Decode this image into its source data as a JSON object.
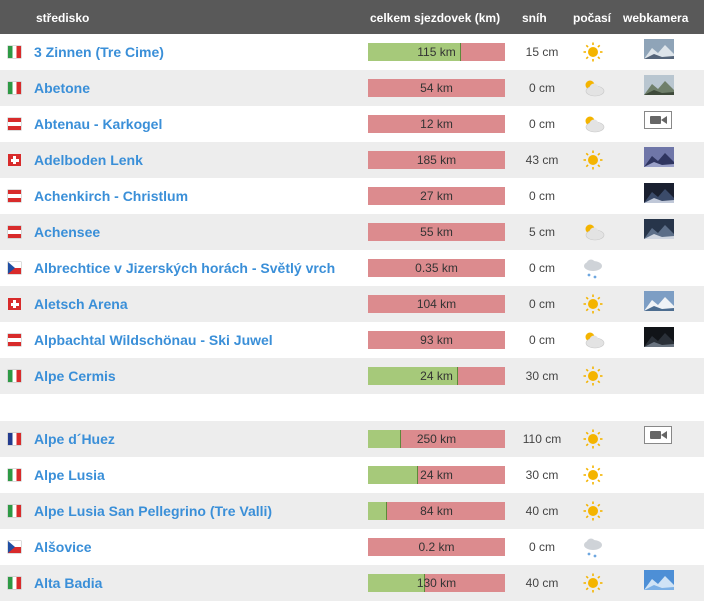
{
  "header": {
    "resort": "středisko",
    "runs": "celkem sjezdovek (km)",
    "snow": "sníh",
    "weather": "počasí",
    "webcam": "webkamera"
  },
  "resorts": [
    {
      "flag": "it",
      "name": "3 Zinnen (Tre Cime)",
      "runs": "115 km",
      "open_fraction": 0.67,
      "snow": "15 cm",
      "weather": "sun",
      "webcam": "thumb-mountain"
    },
    {
      "flag": "it",
      "name": "Abetone",
      "runs": "54 km",
      "open_fraction": 0,
      "snow": "0 cm",
      "weather": "sun-cloud",
      "webcam": "thumb-valley"
    },
    {
      "flag": "at",
      "name": "Abtenau - Karkogel",
      "runs": "12 km",
      "open_fraction": 0,
      "snow": "0 cm",
      "weather": "sun-cloud",
      "webcam": "video-icon"
    },
    {
      "flag": "ch",
      "name": "Adelboden Lenk",
      "runs": "185 km",
      "open_fraction": 0,
      "snow": "43 cm",
      "weather": "sun",
      "webcam": "thumb-dusk"
    },
    {
      "flag": "at",
      "name": "Achenkirch - Christlum",
      "runs": "27 km",
      "open_fraction": 0,
      "snow": "0 cm",
      "weather": "none",
      "webcam": "thumb-night"
    },
    {
      "flag": "at",
      "name": "Achensee",
      "runs": "55 km",
      "open_fraction": 0,
      "snow": "5 cm",
      "weather": "sun-cloud",
      "webcam": "thumb-night2"
    },
    {
      "flag": "cz",
      "name": "Albrechtice v Jizerských horách - Světlý vrch",
      "runs": "0.35 km",
      "open_fraction": 0,
      "snow": "0 cm",
      "weather": "snow-cloud",
      "webcam": "none"
    },
    {
      "flag": "ch",
      "name": "Aletsch Arena",
      "runs": "104 km",
      "open_fraction": 0,
      "snow": "0 cm",
      "weather": "sun",
      "webcam": "thumb-snow"
    },
    {
      "flag": "at",
      "name": "Alpbachtal Wildschönau - Ski Juwel",
      "runs": "93 km",
      "open_fraction": 0,
      "snow": "0 cm",
      "weather": "sun-cloud",
      "webcam": "thumb-dark"
    },
    {
      "flag": "it",
      "name": "Alpe Cermis",
      "runs": "24 km",
      "open_fraction": 0.65,
      "snow": "30 cm",
      "weather": "sun",
      "webcam": "none"
    }
  ],
  "resorts2": [
    {
      "flag": "fr",
      "name": "Alpe d´Huez",
      "runs": "250 km",
      "open_fraction": 0.23,
      "snow": "110 cm",
      "weather": "sun",
      "webcam": "video-icon"
    },
    {
      "flag": "it",
      "name": "Alpe Lusia",
      "runs": "24 km",
      "open_fraction": 0.36,
      "snow": "30 cm",
      "weather": "sun",
      "webcam": "none"
    },
    {
      "flag": "it",
      "name": "Alpe Lusia San Pellegrino (Tre Valli)",
      "runs": "84 km",
      "open_fraction": 0.13,
      "snow": "40 cm",
      "weather": "sun",
      "webcam": "none"
    },
    {
      "flag": "cz",
      "name": "Alšovice",
      "runs": "0.2 km",
      "open_fraction": 0,
      "snow": "0 cm",
      "weather": "snow-cloud",
      "webcam": "none"
    },
    {
      "flag": "it",
      "name": "Alta Badia",
      "runs": "130 km",
      "open_fraction": 0.41,
      "snow": "40 cm",
      "weather": "sun",
      "webcam": "thumb-sky"
    }
  ]
}
